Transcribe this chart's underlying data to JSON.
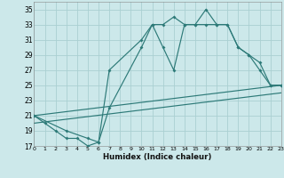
{
  "xlabel": "Humidex (Indice chaleur)",
  "bg_color": "#cce8ea",
  "grid_color": "#aad0d2",
  "line_color": "#2d7a78",
  "xlim": [
    0,
    23
  ],
  "ylim": [
    17,
    36
  ],
  "xticks": [
    0,
    1,
    2,
    3,
    4,
    5,
    6,
    7,
    8,
    9,
    10,
    11,
    12,
    13,
    14,
    15,
    16,
    17,
    18,
    19,
    20,
    21,
    22,
    23
  ],
  "yticks": [
    17,
    19,
    21,
    23,
    25,
    27,
    29,
    31,
    33,
    35
  ],
  "curve1_x": [
    0,
    1,
    2,
    3,
    4,
    5,
    6,
    7,
    10,
    11,
    12,
    13,
    14,
    15,
    16,
    17,
    18,
    19,
    20,
    21,
    22,
    23
  ],
  "curve1_y": [
    21,
    20,
    19,
    18,
    18,
    17,
    17.5,
    27,
    31,
    33,
    33,
    34,
    33,
    33,
    35,
    33,
    33,
    30,
    29,
    27,
    25,
    25
  ],
  "curve2_x": [
    0,
    3,
    5,
    6,
    7,
    10,
    11,
    12,
    13,
    14,
    15,
    16,
    17,
    18,
    19,
    20,
    21,
    22,
    23
  ],
  "curve2_y": [
    21,
    19,
    18,
    17.5,
    22,
    30,
    33,
    30,
    27,
    33,
    33,
    33,
    33,
    33,
    30,
    29,
    28,
    25,
    25
  ],
  "line1_x": [
    0,
    23
  ],
  "line1_y": [
    21.0,
    25.0
  ],
  "line2_x": [
    0,
    23
  ],
  "line2_y": [
    20.0,
    24.0
  ]
}
